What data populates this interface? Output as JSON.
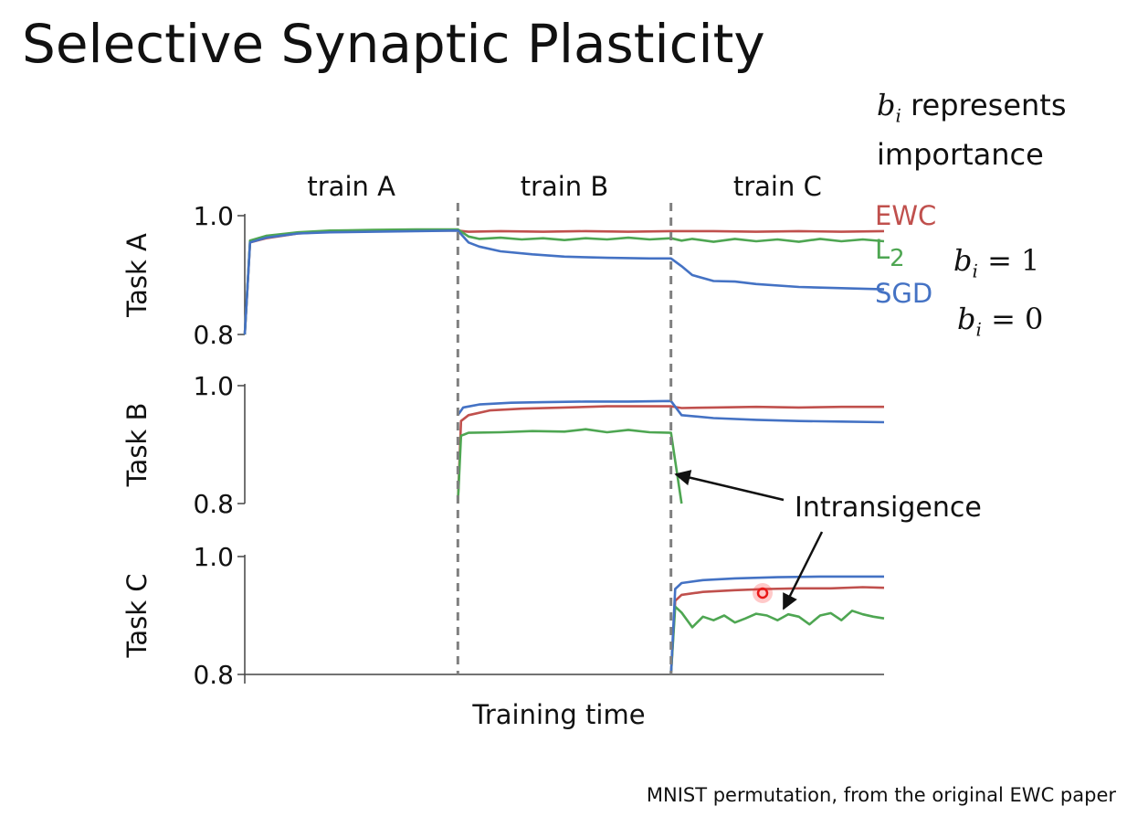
{
  "slide": {
    "title": "Selective Synaptic Plasticity",
    "note_line1": "represents",
    "note_line2": "importance",
    "note_var": "b",
    "note_sub": "i",
    "eq1": {
      "var": "b",
      "sub": "i",
      "rhs": "= 1"
    },
    "eq2": {
      "var": "b",
      "sub": "i",
      "rhs": "= 0"
    },
    "caption": "MNIST permutation, from the original EWC paper"
  },
  "chart_data": {
    "type": "line",
    "xlabel": "Training time",
    "phases": [
      "train A",
      "train B",
      "train C"
    ],
    "x_range": [
      0,
      60
    ],
    "phase_boundaries": [
      20,
      40
    ],
    "colors": {
      "EWC": "#c0504d",
      "L2": "#4ea652",
      "SGD": "#4472c4",
      "boundary": "#808080"
    },
    "legend": [
      {
        "key": "EWC",
        "label": "EWC",
        "sub": ""
      },
      {
        "key": "L2",
        "label": "L",
        "sub": "2"
      },
      {
        "key": "SGD",
        "label": "SGD",
        "sub": ""
      }
    ],
    "legend_placement": "right of top panel",
    "annotation": "Intransigence",
    "panels": [
      {
        "ylabel": "Task A",
        "ylim": [
          0.8,
          1.0
        ],
        "yticks": [
          "1.0",
          "0.8"
        ],
        "series": [
          {
            "key": "EWC",
            "x": [
              0,
              0.5,
              2,
              5,
              8,
              12,
              16,
              20,
              21,
              24,
              28,
              32,
              36,
              40,
              44,
              48,
              52,
              56,
              60
            ],
            "values": [
              0.8,
              0.955,
              0.962,
              0.97,
              0.973,
              0.974,
              0.975,
              0.975,
              0.973,
              0.974,
              0.973,
              0.974,
              0.973,
              0.974,
              0.974,
              0.973,
              0.974,
              0.973,
              0.974
            ]
          },
          {
            "key": "L2",
            "x": [
              0,
              0.5,
              2,
              5,
              8,
              12,
              16,
              20,
              21,
              22,
              24,
              26,
              28,
              30,
              32,
              34,
              36,
              38,
              40,
              41,
              42,
              44,
              46,
              48,
              50,
              52,
              54,
              56,
              58,
              60
            ],
            "values": [
              0.8,
              0.958,
              0.966,
              0.972,
              0.975,
              0.976,
              0.977,
              0.977,
              0.965,
              0.961,
              0.963,
              0.96,
              0.962,
              0.959,
              0.962,
              0.96,
              0.963,
              0.96,
              0.962,
              0.958,
              0.961,
              0.956,
              0.961,
              0.957,
              0.96,
              0.956,
              0.961,
              0.957,
              0.96,
              0.957
            ]
          },
          {
            "key": "SGD",
            "x": [
              0,
              0.5,
              2,
              5,
              8,
              12,
              16,
              20,
              21,
              22,
              24,
              27,
              30,
              34,
              38,
              40,
              41,
              42,
              44,
              46,
              48,
              52,
              56,
              60
            ],
            "values": [
              0.8,
              0.955,
              0.963,
              0.97,
              0.972,
              0.973,
              0.974,
              0.975,
              0.955,
              0.948,
              0.94,
              0.935,
              0.931,
              0.929,
              0.928,
              0.928,
              0.915,
              0.9,
              0.89,
              0.889,
              0.885,
              0.88,
              0.878,
              0.876
            ]
          }
        ]
      },
      {
        "ylabel": "Task B",
        "ylim": [
          0.8,
          1.0
        ],
        "yticks": [
          "1.0",
          "0.8"
        ],
        "series": [
          {
            "key": "EWC",
            "x": [
              20,
              20.3,
              21,
              23,
              26,
              30,
              34,
              38,
              40,
              41,
              44,
              48,
              52,
              56,
              60
            ],
            "values": [
              0.8,
              0.94,
              0.95,
              0.958,
              0.961,
              0.963,
              0.965,
              0.965,
              0.965,
              0.962,
              0.963,
              0.964,
              0.963,
              0.964,
              0.964
            ]
          },
          {
            "key": "L2",
            "x": [
              20,
              20.3,
              21,
              24,
              27,
              30,
              32,
              34,
              36,
              38,
              40,
              40.5,
              41
            ],
            "values": [
              0.8,
              0.915,
              0.92,
              0.921,
              0.923,
              0.922,
              0.926,
              0.921,
              0.925,
              0.921,
              0.92,
              0.86,
              0.8
            ]
          },
          {
            "key": "SGD",
            "x": [
              20,
              20.5,
              22,
              25,
              28,
              32,
              36,
              40,
              41,
              44,
              48,
              52,
              56,
              60
            ],
            "values": [
              0.95,
              0.963,
              0.968,
              0.971,
              0.972,
              0.973,
              0.973,
              0.974,
              0.95,
              0.945,
              0.942,
              0.94,
              0.939,
              0.938
            ]
          }
        ]
      },
      {
        "ylabel": "Task C",
        "ylim": [
          0.8,
          1.0
        ],
        "yticks": [
          "1.0",
          "0.8"
        ],
        "series": [
          {
            "key": "EWC",
            "x": [
              40,
              40.4,
              41,
              43,
              46,
              49,
              52,
              55,
              58,
              60
            ],
            "values": [
              0.8,
              0.925,
              0.935,
              0.94,
              0.943,
              0.945,
              0.946,
              0.946,
              0.948,
              0.947
            ]
          },
          {
            "key": "L2",
            "x": [
              40,
              40.4,
              41,
              42,
              43,
              44,
              45,
              46,
              47,
              48,
              49,
              50,
              51,
              52,
              53,
              54,
              55,
              56,
              57,
              58,
              59,
              60
            ],
            "values": [
              0.8,
              0.915,
              0.905,
              0.88,
              0.898,
              0.892,
              0.9,
              0.888,
              0.895,
              0.903,
              0.9,
              0.892,
              0.902,
              0.898,
              0.885,
              0.9,
              0.904,
              0.892,
              0.908,
              0.902,
              0.898,
              0.895
            ]
          },
          {
            "key": "SGD",
            "x": [
              40,
              40.4,
              41,
              43,
              46,
              50,
              54,
              58,
              60
            ],
            "values": [
              0.8,
              0.945,
              0.955,
              0.96,
              0.963,
              0.965,
              0.966,
              0.966,
              0.966
            ]
          }
        ]
      }
    ]
  }
}
